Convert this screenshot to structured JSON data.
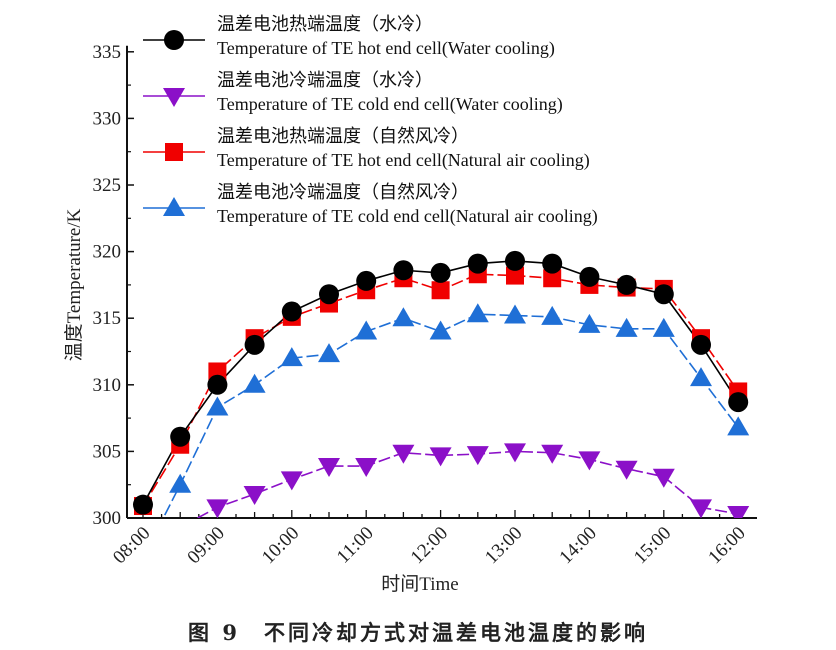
{
  "chart_data": {
    "type": "line",
    "caption": "图 9　不同冷却方式对温差电池温度的影响",
    "xlabel": "时间Time",
    "ylabel": "温度Temperature/K",
    "ylim": [
      300,
      335
    ],
    "yticks": [
      300,
      305,
      310,
      315,
      320,
      325,
      330,
      335
    ],
    "x": [
      "08:00",
      "08:30",
      "09:00",
      "09:30",
      "10:00",
      "10:30",
      "11:00",
      "11:30",
      "12:00",
      "12:30",
      "13:00",
      "13:30",
      "14:00",
      "14:30",
      "15:00",
      "15:30",
      "16:00"
    ],
    "xtick_labels": [
      "08:00",
      "09:00",
      "10:00",
      "11:00",
      "12:00",
      "13:00",
      "14:00",
      "15:00",
      "16:00"
    ],
    "grid": false,
    "legend_position": "top-left",
    "series": [
      {
        "name": "温差电池热端温度（水冷）",
        "name_en": "Temperature of TE hot end cell(Water cooling)",
        "marker": "circle",
        "color": "#000000",
        "values": [
          301.0,
          306.1,
          310.0,
          313.0,
          315.5,
          316.8,
          317.8,
          318.6,
          318.4,
          319.1,
          319.3,
          319.1,
          318.1,
          317.5,
          316.8,
          313.0,
          308.7
        ]
      },
      {
        "name": "温差电池冷端温度（水冷）",
        "name_en": "Temperature of TE cold end cell(Water cooling)",
        "marker": "triangle-down",
        "color": "#8b10c8",
        "values": [
          297.5,
          299.3,
          300.8,
          301.8,
          302.9,
          303.9,
          303.9,
          304.9,
          304.7,
          304.8,
          305.0,
          304.9,
          304.4,
          303.7,
          303.1,
          300.8,
          300.3
        ]
      },
      {
        "name": "温差电池热端温度（自然风冷）",
        "name_en": "Temperature of TE hot end cell(Natural air cooling)",
        "marker": "square",
        "color": "#f00000",
        "values": [
          300.9,
          305.5,
          311.0,
          313.5,
          315.1,
          316.1,
          317.1,
          318.0,
          317.1,
          318.3,
          318.2,
          318.0,
          317.5,
          317.3,
          317.2,
          313.5,
          309.5
        ]
      },
      {
        "name": "温差电池冷端温度（自然风冷）",
        "name_en": "Temperature of TE cold end cell(Natural air cooling)",
        "marker": "triangle-up",
        "color": "#1f6fd6",
        "values": [
          297.0,
          302.5,
          308.3,
          310.0,
          312.0,
          312.3,
          314.0,
          315.0,
          314.0,
          315.3,
          315.2,
          315.1,
          314.5,
          314.2,
          314.2,
          310.5,
          306.8
        ]
      }
    ]
  }
}
